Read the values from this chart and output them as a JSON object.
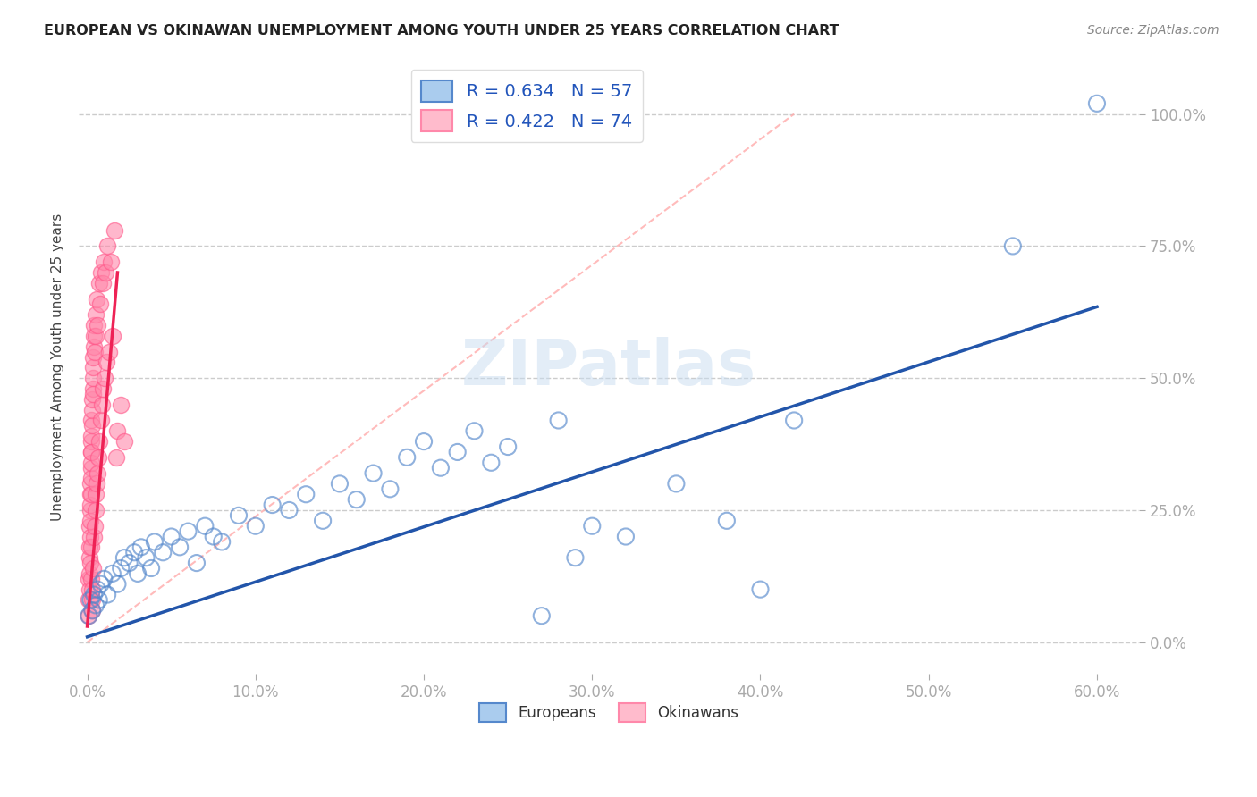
{
  "title": "EUROPEAN VS OKINAWAN UNEMPLOYMENT AMONG YOUTH UNDER 25 YEARS CORRELATION CHART",
  "source": "Source: ZipAtlas.com",
  "ylabel": "Unemployment Among Youth under 25 years",
  "xlim": [
    -0.005,
    0.625
  ],
  "ylim": [
    -0.06,
    1.1
  ],
  "xlabel_vals": [
    0.0,
    0.1,
    0.2,
    0.3,
    0.4,
    0.5,
    0.6
  ],
  "xlabel_labels": [
    "0.0%",
    "10.0%",
    "20.0%",
    "30.0%",
    "40.0%",
    "50.0%",
    "60.0%"
  ],
  "ylabel_vals": [
    0.0,
    0.25,
    0.5,
    0.75,
    1.0
  ],
  "ylabel_labels": [
    "0.0%",
    "25.0%",
    "50.0%",
    "75.0%",
    "100.0%"
  ],
  "european_edge": "#5588CC",
  "okinawan_face": "#FF88AA",
  "okinawan_edge": "#FF5588",
  "european_R": 0.634,
  "european_N": 57,
  "okinawan_R": 0.422,
  "okinawan_N": 74,
  "euro_trend": [
    0.0,
    0.01,
    0.6,
    0.635
  ],
  "okin_trend": [
    0.0,
    0.03,
    0.018,
    0.7
  ],
  "okin_diag": [
    0.0,
    0.0,
    0.42,
    1.0
  ],
  "watermark": "ZIPatlas",
  "grid_color": "#CCCCCC",
  "tick_color": "#5599CC",
  "legend_euro_face": "#AACCEE",
  "legend_euro_edge": "#5588CC",
  "legend_okin_face": "#FFBBCC",
  "legend_okin_edge": "#FF88AA",
  "euro_scatter": [
    [
      0.001,
      0.05
    ],
    [
      0.002,
      0.08
    ],
    [
      0.003,
      0.06
    ],
    [
      0.004,
      0.09
    ],
    [
      0.005,
      0.07
    ],
    [
      0.006,
      0.1
    ],
    [
      0.007,
      0.08
    ],
    [
      0.008,
      0.11
    ],
    [
      0.01,
      0.12
    ],
    [
      0.012,
      0.09
    ],
    [
      0.015,
      0.13
    ],
    [
      0.018,
      0.11
    ],
    [
      0.02,
      0.14
    ],
    [
      0.022,
      0.16
    ],
    [
      0.025,
      0.15
    ],
    [
      0.028,
      0.17
    ],
    [
      0.03,
      0.13
    ],
    [
      0.032,
      0.18
    ],
    [
      0.035,
      0.16
    ],
    [
      0.038,
      0.14
    ],
    [
      0.04,
      0.19
    ],
    [
      0.045,
      0.17
    ],
    [
      0.05,
      0.2
    ],
    [
      0.055,
      0.18
    ],
    [
      0.06,
      0.21
    ],
    [
      0.065,
      0.15
    ],
    [
      0.07,
      0.22
    ],
    [
      0.075,
      0.2
    ],
    [
      0.08,
      0.19
    ],
    [
      0.09,
      0.24
    ],
    [
      0.1,
      0.22
    ],
    [
      0.11,
      0.26
    ],
    [
      0.12,
      0.25
    ],
    [
      0.13,
      0.28
    ],
    [
      0.14,
      0.23
    ],
    [
      0.15,
      0.3
    ],
    [
      0.16,
      0.27
    ],
    [
      0.17,
      0.32
    ],
    [
      0.18,
      0.29
    ],
    [
      0.19,
      0.35
    ],
    [
      0.2,
      0.38
    ],
    [
      0.21,
      0.33
    ],
    [
      0.22,
      0.36
    ],
    [
      0.23,
      0.4
    ],
    [
      0.24,
      0.34
    ],
    [
      0.25,
      0.37
    ],
    [
      0.27,
      0.05
    ],
    [
      0.28,
      0.42
    ],
    [
      0.29,
      0.16
    ],
    [
      0.3,
      0.22
    ],
    [
      0.32,
      0.2
    ],
    [
      0.35,
      0.3
    ],
    [
      0.38,
      0.23
    ],
    [
      0.4,
      0.1
    ],
    [
      0.42,
      0.42
    ],
    [
      0.55,
      0.75
    ],
    [
      0.6,
      1.02
    ]
  ],
  "okin_scatter": [
    [
      0.0008,
      0.05
    ],
    [
      0.001,
      0.08
    ],
    [
      0.001,
      0.12
    ],
    [
      0.0012,
      0.1
    ],
    [
      0.0012,
      0.16
    ],
    [
      0.0013,
      0.13
    ],
    [
      0.0015,
      0.18
    ],
    [
      0.0015,
      0.22
    ],
    [
      0.0016,
      0.2
    ],
    [
      0.0017,
      0.25
    ],
    [
      0.0018,
      0.23
    ],
    [
      0.0018,
      0.28
    ],
    [
      0.0019,
      0.26
    ],
    [
      0.002,
      0.3
    ],
    [
      0.002,
      0.15
    ],
    [
      0.0021,
      0.33
    ],
    [
      0.0022,
      0.28
    ],
    [
      0.0022,
      0.36
    ],
    [
      0.0023,
      0.31
    ],
    [
      0.0023,
      0.12
    ],
    [
      0.0024,
      0.34
    ],
    [
      0.0024,
      0.38
    ],
    [
      0.0025,
      0.36
    ],
    [
      0.0025,
      0.18
    ],
    [
      0.0026,
      0.39
    ],
    [
      0.0026,
      0.42
    ],
    [
      0.0027,
      0.41
    ],
    [
      0.0027,
      0.08
    ],
    [
      0.0028,
      0.44
    ],
    [
      0.0028,
      0.06
    ],
    [
      0.003,
      0.46
    ],
    [
      0.003,
      0.1
    ],
    [
      0.0032,
      0.48
    ],
    [
      0.0032,
      0.14
    ],
    [
      0.0033,
      0.5
    ],
    [
      0.0034,
      0.52
    ],
    [
      0.0035,
      0.47
    ],
    [
      0.0036,
      0.54
    ],
    [
      0.0038,
      0.56
    ],
    [
      0.004,
      0.58
    ],
    [
      0.004,
      0.2
    ],
    [
      0.0042,
      0.6
    ],
    [
      0.0044,
      0.22
    ],
    [
      0.0046,
      0.55
    ],
    [
      0.0048,
      0.25
    ],
    [
      0.005,
      0.62
    ],
    [
      0.005,
      0.28
    ],
    [
      0.0052,
      0.58
    ],
    [
      0.0055,
      0.3
    ],
    [
      0.0058,
      0.65
    ],
    [
      0.006,
      0.32
    ],
    [
      0.0062,
      0.6
    ],
    [
      0.0065,
      0.35
    ],
    [
      0.007,
      0.68
    ],
    [
      0.0072,
      0.38
    ],
    [
      0.0075,
      0.64
    ],
    [
      0.008,
      0.42
    ],
    [
      0.0082,
      0.7
    ],
    [
      0.0085,
      0.45
    ],
    [
      0.009,
      0.68
    ],
    [
      0.0095,
      0.48
    ],
    [
      0.01,
      0.72
    ],
    [
      0.0105,
      0.5
    ],
    [
      0.011,
      0.7
    ],
    [
      0.0115,
      0.53
    ],
    [
      0.012,
      0.75
    ],
    [
      0.013,
      0.55
    ],
    [
      0.014,
      0.72
    ],
    [
      0.015,
      0.58
    ],
    [
      0.016,
      0.78
    ],
    [
      0.017,
      0.35
    ],
    [
      0.018,
      0.4
    ],
    [
      0.02,
      0.45
    ],
    [
      0.022,
      0.38
    ]
  ]
}
